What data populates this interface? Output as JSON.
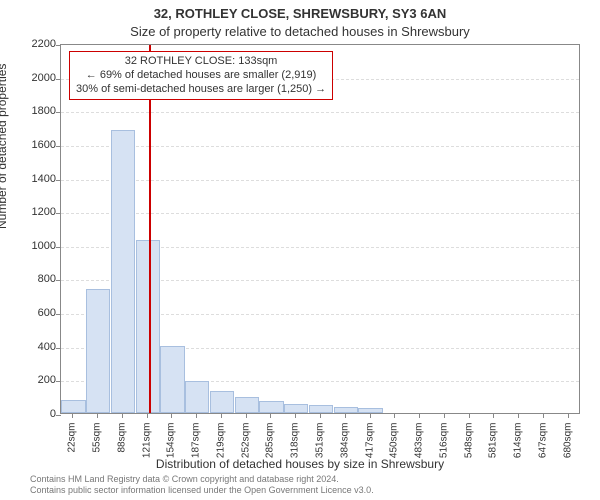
{
  "title_address": "32, ROTHLEY CLOSE, SHREWSBURY, SY3 6AN",
  "title_subtitle": "Size of property relative to detached houses in Shrewsbury",
  "chart": {
    "type": "histogram",
    "ylabel": "Number of detached properties",
    "xlabel": "Distribution of detached houses by size in Shrewsbury",
    "ylim": [
      0,
      2200
    ],
    "ytick_step": 200,
    "yticks": [
      0,
      200,
      400,
      600,
      800,
      1000,
      1200,
      1400,
      1600,
      1800,
      2000,
      2200
    ],
    "categories": [
      "22sqm",
      "55sqm",
      "88sqm",
      "121sqm",
      "154sqm",
      "187sqm",
      "219sqm",
      "252sqm",
      "285sqm",
      "318sqm",
      "351sqm",
      "384sqm",
      "417sqm",
      "450sqm",
      "483sqm",
      "516sqm",
      "548sqm",
      "581sqm",
      "614sqm",
      "647sqm",
      "680sqm"
    ],
    "values": [
      80,
      740,
      1680,
      1030,
      400,
      190,
      130,
      95,
      70,
      55,
      45,
      35,
      30,
      0,
      0,
      0,
      0,
      0,
      0,
      0,
      0
    ],
    "bar_fill": "#d6e2f3",
    "bar_border": "#a8bfdf",
    "grid_color": "#dddddd",
    "axis_color": "#888888",
    "background_color": "#ffffff",
    "tick_fontsize": 11,
    "label_fontsize": 12,
    "title_fontsize": 13,
    "marker": {
      "position_sqm": 133,
      "line_color": "#cc0000",
      "annotation_lines": [
        "32 ROTHLEY CLOSE: 133sqm",
        "← 69% of detached houses are smaller (2,919)",
        "30% of semi-detached houses are larger (1,250) →"
      ],
      "annotation_border": "#cc0000",
      "annotation_bg": "#ffffff"
    }
  },
  "footer_line1": "Contains HM Land Registry data © Crown copyright and database right 2024.",
  "footer_line2": "Contains public sector information licensed under the Open Government Licence v3.0."
}
